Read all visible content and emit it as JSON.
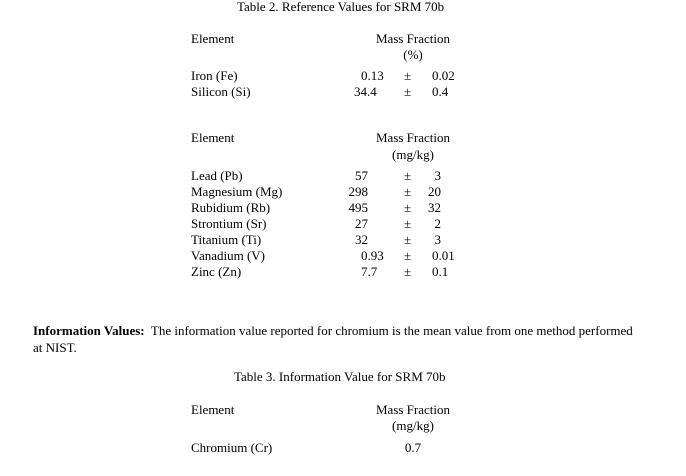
{
  "table2": {
    "title": "Table 2. Reference Values for SRM 70b",
    "part1": {
      "col_element": "Element",
      "col_mass": "Mass Fraction",
      "unit": "(%)",
      "rows": [
        {
          "element": "Iron (Fe)",
          "value": "0.13",
          "pm": "±",
          "unc": "0.02",
          "decimal": true
        },
        {
          "element": "Silicon (Si)",
          "value": "34.4",
          "pm": "±",
          "unc": "0.4",
          "decimal": true
        }
      ]
    },
    "part2": {
      "col_element": "Element",
      "col_mass": "Mass Fraction",
      "unit": "(mg/kg)",
      "rows": [
        {
          "element": "Lead (Pb)",
          "value": "57",
          "pm": "±",
          "unc": "3"
        },
        {
          "element": "Magnesium (Mg)",
          "value": "298",
          "pm": "±",
          "unc": "20"
        },
        {
          "element": "Rubidium (Rb)",
          "value": "495",
          "pm": "±",
          "unc": "32"
        },
        {
          "element": "Strontium (Sr)",
          "value": "27",
          "pm": "±",
          "unc": "2"
        },
        {
          "element": "Titanium (Ti)",
          "value": "32",
          "pm": "±",
          "unc": "3"
        },
        {
          "element": "Vanadium (V)",
          "value": "0.93",
          "pm": "±",
          "unc": "0.01",
          "decimal": true
        },
        {
          "element": "Zinc (Zn)",
          "value": "7.7",
          "pm": "±",
          "unc": "0.1",
          "decimal": true
        }
      ]
    }
  },
  "info": {
    "label": "Information Values:",
    "text": "The information value reported for chromium is the mean value from one method performed",
    "text2": "at NIST."
  },
  "table3": {
    "title": "Table 3. Information Value for SRM 70b",
    "col_element": "Element",
    "col_mass": "Mass Fraction",
    "unit": "(mg/kg)",
    "rows": [
      {
        "element": "Chromium (Cr)",
        "value": "0.7"
      }
    ]
  }
}
